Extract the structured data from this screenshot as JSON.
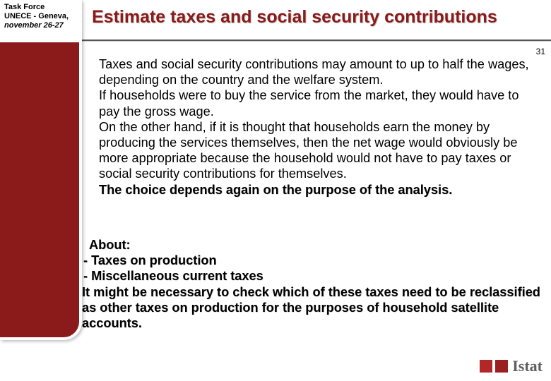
{
  "sidebar": {
    "line1": "Task Force",
    "line2": "UNECE - Geneva,",
    "line3": "november 26-27"
  },
  "title": "Estimate taxes and social security contributions",
  "page_number": "31",
  "body": {
    "p1": "Taxes and social security contributions may amount to up to half the wages, depending on the country and the welfare system.",
    "p2": "If households were to buy the service from the market, they would have to pay the gross wage.",
    "p3": "On the other hand, if it is thought that households earn the money by producing the services themselves, then the net wage would obviously be more appropriate because the household would not have to pay taxes or social security contributions for themselves.",
    "bold": "The choice depends again on the purpose of the analysis."
  },
  "bottom": {
    "about": "About:",
    "b1": "-  Taxes on production",
    "b2": "-  Miscellaneous current taxes",
    "rest": "It might be necessary to check which of these taxes need to be reclassified as other taxes on production for the purposes of household satellite accounts."
  },
  "logo_text": "Istat",
  "colors": {
    "brand": "#8b1a1a",
    "logo_sq1": "#b22828",
    "logo_sq2": "#9a1f1f"
  }
}
